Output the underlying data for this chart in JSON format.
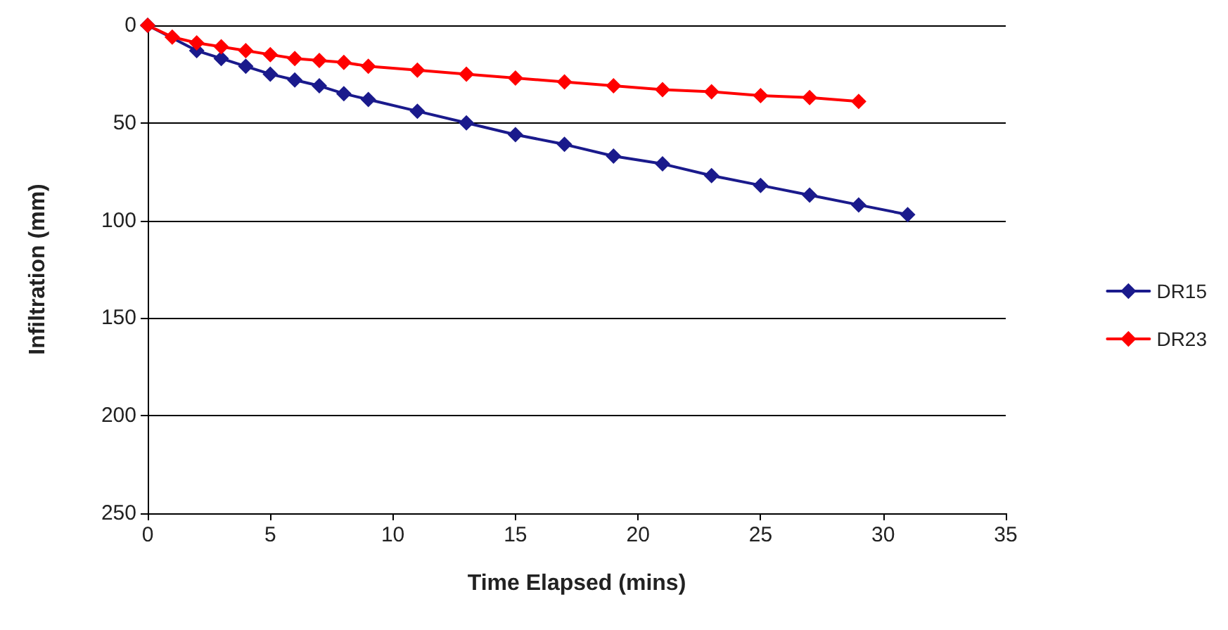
{
  "chart_data": {
    "type": "line",
    "xlabel": "Time Elapsed (mins)",
    "ylabel": "Infiltration (mm)",
    "xlim": [
      0,
      35
    ],
    "xticks": [
      0,
      5,
      10,
      15,
      20,
      25,
      30,
      35
    ],
    "ylim": [
      250,
      0
    ],
    "yticks": [
      0,
      50,
      100,
      150,
      200,
      250
    ],
    "grid": "y",
    "legend": "right",
    "marker": "diamond",
    "line_style": "solid",
    "series": [
      {
        "name": "DR15",
        "color": "#1a1a8c",
        "x": [
          0,
          1,
          2,
          3,
          4,
          5,
          6,
          7,
          8,
          9,
          11,
          13,
          15,
          17,
          19,
          21,
          23,
          25,
          27,
          29,
          31
        ],
        "values": [
          0,
          null,
          13,
          17,
          21,
          25,
          28,
          31,
          35,
          38,
          44,
          50,
          56,
          61,
          67,
          71,
          77,
          82,
          87,
          92,
          97
        ]
      },
      {
        "name": "DR23",
        "color": "#ff0000",
        "x": [
          0,
          1,
          2,
          3,
          4,
          5,
          6,
          7,
          8,
          9,
          11,
          13,
          15,
          17,
          19,
          21,
          23,
          25,
          27,
          29
        ],
        "values": [
          0,
          6,
          9,
          11,
          13,
          15,
          17,
          18,
          19,
          21,
          23,
          25,
          27,
          29,
          31,
          33,
          34,
          36,
          37,
          39
        ]
      }
    ]
  }
}
